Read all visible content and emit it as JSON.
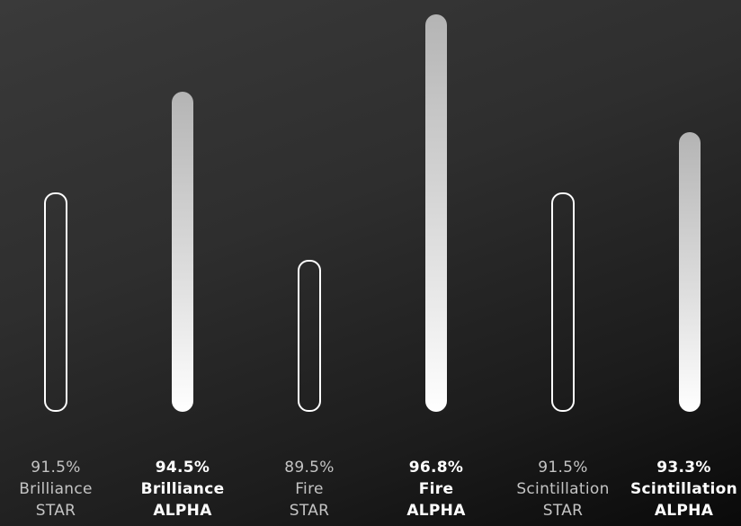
{
  "chart_data": {
    "type": "bar",
    "value_range": [
      0,
      100
    ],
    "bars": [
      {
        "value": 91.5,
        "value_label": "91.5%",
        "metric": "Brilliance",
        "product": "STAR",
        "style": "outline"
      },
      {
        "value": 94.5,
        "value_label": "94.5%",
        "metric": "Brilliance",
        "product": "ALPHA",
        "style": "filled"
      },
      {
        "value": 89.5,
        "value_label": "89.5%",
        "metric": "Fire",
        "product": "STAR",
        "style": "outline"
      },
      {
        "value": 96.8,
        "value_label": "96.8%",
        "metric": "Fire",
        "product": "ALPHA",
        "style": "filled"
      },
      {
        "value": 91.5,
        "value_label": "91.5%",
        "metric": "Scintillation",
        "product": "STAR",
        "style": "outline"
      },
      {
        "value": 93.3,
        "value_label": "93.3%",
        "metric": "Scintillation",
        "product": "ALPHA",
        "style": "filled"
      }
    ]
  },
  "colors": {
    "outline": "#ffffff",
    "star_text": "#c4c4c4",
    "alpha_text": "#ffffff"
  }
}
